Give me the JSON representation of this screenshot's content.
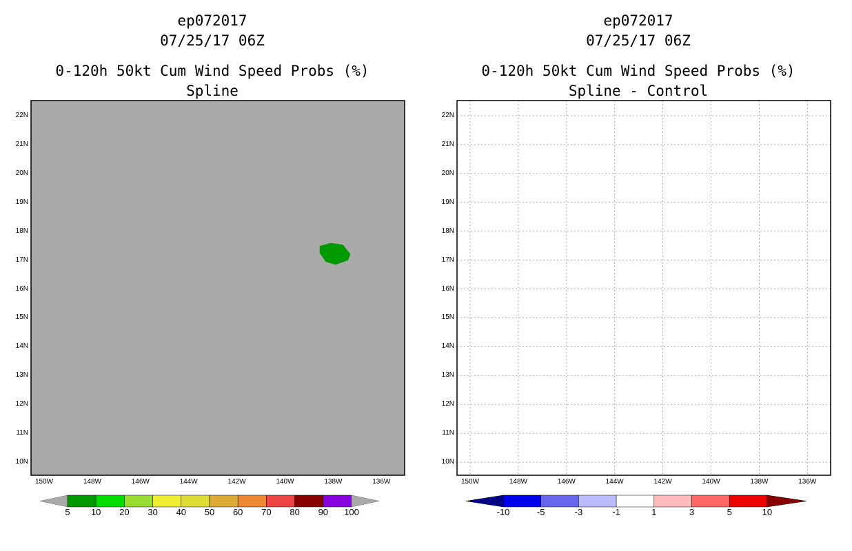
{
  "left_panel": {
    "title_lines": [
      "ep072017",
      "07/25/17 06Z",
      "0-120h 50kt Cum Wind Speed Probs (%)",
      "Spline"
    ],
    "background_color": "#aaaaaa",
    "feature": {
      "label": "5-10% wind probability area",
      "color": "#009900",
      "approx_region_lon": [
        -138.5,
        -137.2
      ],
      "approx_region_lat": [
        16.8,
        17.6
      ]
    },
    "colorbar": {
      "colors": [
        "#aaaaaa",
        "#009900",
        "#00dd00",
        "#99dd33",
        "#eeee33",
        "#dddd33",
        "#ddaa33",
        "#ee8833",
        "#ee4444",
        "#880000",
        "#8800dd",
        "#aaaaaa"
      ],
      "labels": [
        "5",
        "10",
        "20",
        "30",
        "40",
        "50",
        "60",
        "70",
        "80",
        "90",
        "100"
      ]
    }
  },
  "right_panel": {
    "title_lines": [
      "ep072017",
      "07/25/17 06Z",
      "0-120h 50kt Cum Wind Speed Probs (%)",
      "Spline - Control"
    ],
    "background_color": "#ffffff",
    "colorbar": {
      "colors": [
        "#000088",
        "#0000ee",
        "#6666ee",
        "#bbbbff",
        "#ffffff",
        "#ffbbbb",
        "#ff6666",
        "#ee0000",
        "#880000"
      ],
      "labels": [
        "-10",
        "-5",
        "-3",
        "-1",
        "1",
        "3",
        "5",
        "10"
      ]
    }
  },
  "axes": {
    "lat_labels": [
      "22N",
      "21N",
      "20N",
      "19N",
      "18N",
      "17N",
      "16N",
      "15N",
      "14N",
      "13N",
      "12N",
      "11N",
      "10N"
    ],
    "lon_labels": [
      "150W",
      "148W",
      "146W",
      "144W",
      "142W",
      "140W",
      "138W",
      "136W"
    ],
    "grid_color": "#aaaaaa"
  }
}
